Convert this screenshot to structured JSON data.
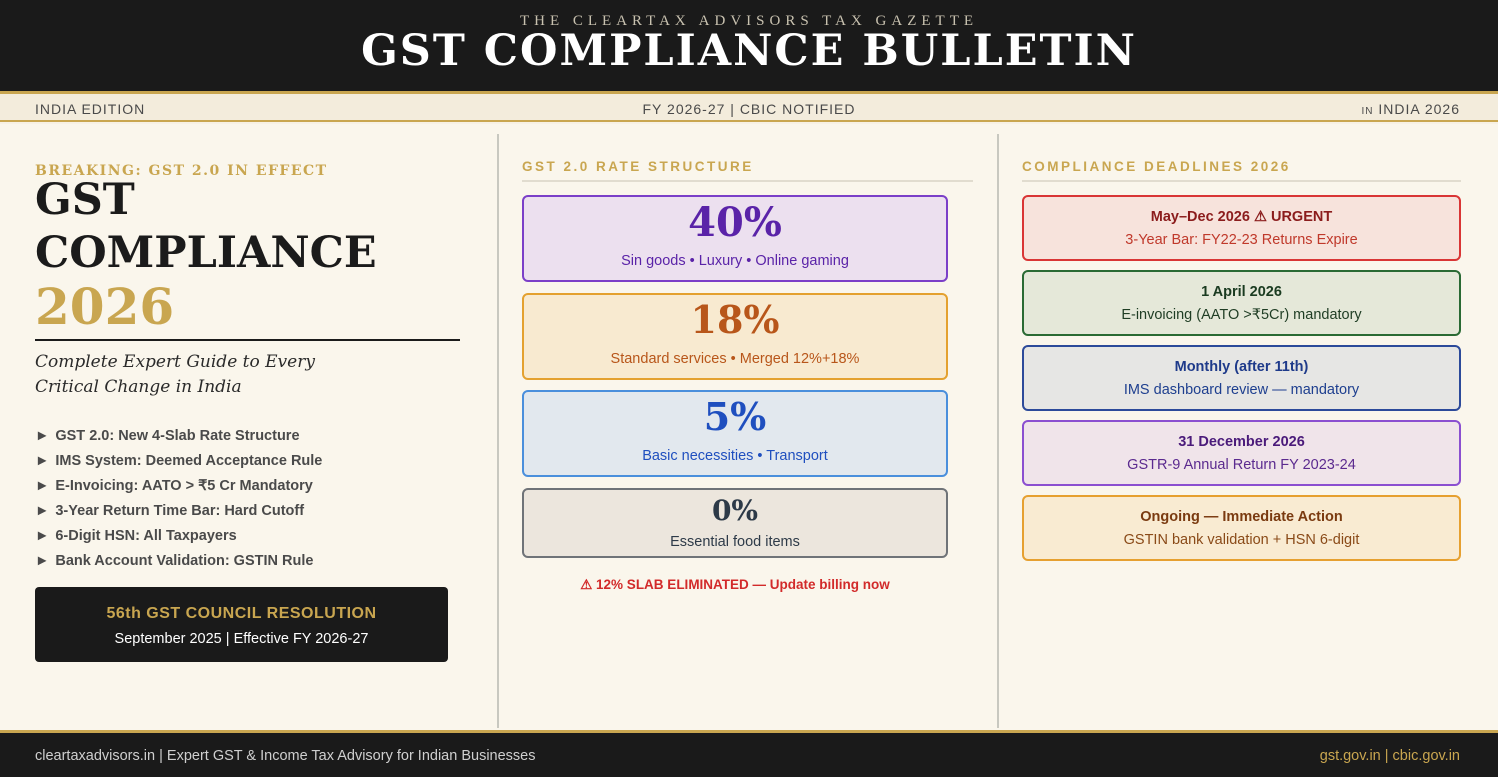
{
  "masthead": {
    "kicker": "THE CLEARTAX ADVISORS TAX GAZETTE",
    "title": "GST COMPLIANCE BULLETIN"
  },
  "dateline": {
    "left": "INDIA EDITION",
    "center": "FY 2026-27 | CBIC NOTIFIED",
    "right_prefix": "IN",
    "right": "INDIA 2026"
  },
  "left": {
    "breaking": "BREAKING: GST 2.0 IN EFFECT",
    "hero_line1": "GST",
    "hero_line2": "COMPLIANCE",
    "hero_year": "2026",
    "subtitle": "Complete Expert Guide to Every Critical Change in India",
    "bullet_marker": "►",
    "bullets": [
      "GST 2.0: New 4-Slab Rate Structure",
      "IMS System: Deemed Acceptance Rule",
      "E-Invoicing: AATO > ₹5 Cr Mandatory",
      "3-Year Return Time Bar: Hard Cutoff",
      "6-Digit HSN: All Taxpayers",
      "Bank Account Validation: GSTIN Rule"
    ],
    "resolution": {
      "title": "56th GST COUNCIL RESOLUTION",
      "subtitle": "September 2025 | Effective FY 2026-27"
    }
  },
  "rates": {
    "heading": "GST 2.0 RATE STRUCTURE",
    "cards": [
      {
        "rate": "40%",
        "description": "Sin goods • Luxury • Online gaming",
        "accent": "#7b3fc8",
        "bg": "#ece0ef",
        "text": "#5a23a8"
      },
      {
        "rate": "18%",
        "description": "Standard services • Merged 12%+18%",
        "accent": "#e4a12f",
        "bg": "#f8ead0",
        "text": "#b8561a"
      },
      {
        "rate": "5%",
        "description": "Basic necessities • Transport",
        "accent": "#4a8fdc",
        "bg": "#e2e8ee",
        "text": "#1f4fbf"
      },
      {
        "rate": "0%",
        "description": "Essential food items",
        "accent": "#6f7378",
        "bg": "#ece6dd",
        "text": "#2d3a48"
      }
    ],
    "note": "⚠ 12% SLAB ELIMINATED — Update billing now"
  },
  "deadlines": {
    "heading": "COMPLIANCE DEADLINES 2026",
    "items": [
      {
        "title": "May–Dec 2026 ⚠ URGENT",
        "detail": "3-Year Bar: FY22-23 Returns Expire",
        "accent": "#d93535",
        "bg": "#f7e3dc",
        "title_color": "#8b1c1c",
        "text_color": "#c0392b"
      },
      {
        "title": "1 April 2026",
        "detail": "E-invoicing (AATO >₹5Cr) mandatory",
        "accent": "#2a6a34",
        "bg": "#e5e8d9",
        "title_color": "#1a3b20",
        "text_color": "#1f3d24"
      },
      {
        "title": "Monthly (after 11th)",
        "detail": "IMS dashboard review — mandatory",
        "accent": "#2c4a9a",
        "bg": "#e6e6e4",
        "title_color": "#1e3a8a",
        "text_color": "#1e3f8f"
      },
      {
        "title": "31 December 2026",
        "detail": "GSTR-9 Annual Return FY 2023-24",
        "accent": "#8b4fd0",
        "bg": "#f0e4ea",
        "title_color": "#4a1a7a",
        "text_color": "#5b2a8f"
      },
      {
        "title": "Ongoing — Immediate Action",
        "detail": "GSTIN bank validation + HSN 6-digit",
        "accent": "#e6a030",
        "bg": "#f9ebd2",
        "title_color": "#7a3a10",
        "text_color": "#8a4a18"
      }
    ]
  },
  "footer": {
    "left": "cleartaxadvisors.in | Expert GST & Income Tax Advisory for Indian Businesses",
    "right": "gst.gov.in | cbic.gov.in"
  }
}
